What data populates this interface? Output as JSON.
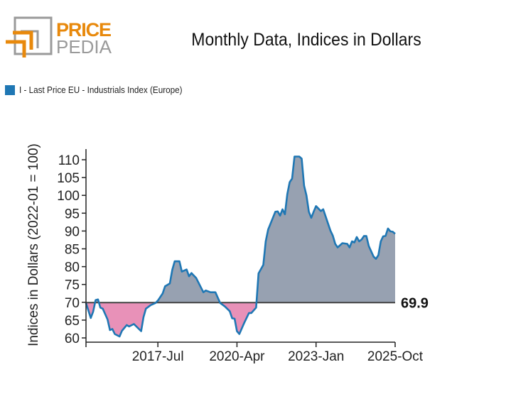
{
  "logo": {
    "line1": "PRICE",
    "line2": "PEDIA",
    "orange": "#e8890c",
    "gray": "#9a9a9a"
  },
  "title": "Monthly Data, Indices in Dollars",
  "legend": {
    "label": "I - Last Price EU - Industrials Index (Europe)",
    "color": "#1f77b4"
  },
  "chart_data": {
    "type": "area",
    "title": "Monthly Data, Indices in Dollars",
    "ylabel": "Indices in Dollars (2022-01 = 100)",
    "xlabel": "",
    "ylim": [
      59,
      113
    ],
    "yticks": [
      60,
      65,
      70,
      75,
      80,
      85,
      90,
      95,
      100,
      105,
      110
    ],
    "xlim": [
      "2015-01",
      "2025-10"
    ],
    "xticks": [
      {
        "date": "2015-01",
        "label": ""
      },
      {
        "date": "2017-07",
        "label": "2017-Jul"
      },
      {
        "date": "2020-04",
        "label": "2020-Apr"
      },
      {
        "date": "2023-01",
        "label": "2023-Jan"
      },
      {
        "date": "2025-10",
        "label": "2025-Oct"
      }
    ],
    "reference": {
      "value": 69.9,
      "label": "69.9"
    },
    "colors": {
      "line": "#1f77b4",
      "above": "#97a1b1",
      "below": "#e891b8",
      "reference": "#444444"
    },
    "grid": false,
    "series": [
      {
        "name": "I - Last Price EU - Industrials Index (Europe)",
        "points": [
          [
            "2015-01",
            69.8
          ],
          [
            "2015-03",
            65.6
          ],
          [
            "2015-04",
            67.4
          ],
          [
            "2015-05",
            70.6
          ],
          [
            "2015-06",
            70.8
          ],
          [
            "2015-07",
            68.5
          ],
          [
            "2015-08",
            68.2
          ],
          [
            "2015-10",
            65.2
          ],
          [
            "2015-11",
            62.2
          ],
          [
            "2015-12",
            62.5
          ],
          [
            "2016-01",
            61.1
          ],
          [
            "2016-03",
            60.4
          ],
          [
            "2016-04",
            62.0
          ],
          [
            "2016-06",
            63.6
          ],
          [
            "2016-07",
            63.2
          ],
          [
            "2016-09",
            63.9
          ],
          [
            "2016-12",
            61.9
          ],
          [
            "2017-01",
            65.8
          ],
          [
            "2017-02",
            68.2
          ],
          [
            "2017-04",
            69.2
          ],
          [
            "2017-06",
            69.8
          ],
          [
            "2017-07",
            70.5
          ],
          [
            "2017-09",
            72.5
          ],
          [
            "2017-10",
            74.5
          ],
          [
            "2017-12",
            75.3
          ],
          [
            "2018-01",
            79.1
          ],
          [
            "2018-02",
            81.5
          ],
          [
            "2018-04",
            81.5
          ],
          [
            "2018-05",
            78.6
          ],
          [
            "2018-07",
            79.2
          ],
          [
            "2018-08",
            77.3
          ],
          [
            "2018-09",
            78.2
          ],
          [
            "2018-11",
            76.8
          ],
          [
            "2019-01",
            74.1
          ],
          [
            "2019-02",
            72.8
          ],
          [
            "2019-03",
            73.3
          ],
          [
            "2019-05",
            72.8
          ],
          [
            "2019-07",
            72.8
          ],
          [
            "2019-09",
            69.8
          ],
          [
            "2019-11",
            68.8
          ],
          [
            "2020-01",
            67.5
          ],
          [
            "2020-02",
            65.5
          ],
          [
            "2020-03",
            65.4
          ],
          [
            "2020-04",
            61.9
          ],
          [
            "2020-05",
            61.1
          ],
          [
            "2020-07",
            64.2
          ],
          [
            "2020-09",
            67.0
          ],
          [
            "2020-10",
            67.0
          ],
          [
            "2020-12",
            68.5
          ],
          [
            "2021-01",
            78.1
          ],
          [
            "2021-03",
            80.5
          ],
          [
            "2021-04",
            87.1
          ],
          [
            "2021-05",
            90.4
          ],
          [
            "2021-08",
            95.4
          ],
          [
            "2021-09",
            95.5
          ],
          [
            "2021-10",
            94.3
          ],
          [
            "2021-11",
            96.1
          ],
          [
            "2021-12",
            94.7
          ],
          [
            "2022-01",
            100.4
          ],
          [
            "2022-02",
            103.7
          ],
          [
            "2022-03",
            104.7
          ],
          [
            "2022-04",
            110.9
          ],
          [
            "2022-06",
            110.9
          ],
          [
            "2022-07",
            110.3
          ],
          [
            "2022-08",
            102.7
          ],
          [
            "2022-09",
            100.0
          ],
          [
            "2022-10",
            95.4
          ],
          [
            "2022-11",
            93.7
          ],
          [
            "2022-12",
            95.4
          ],
          [
            "2023-01",
            97.0
          ],
          [
            "2023-03",
            95.6
          ],
          [
            "2023-04",
            96.1
          ],
          [
            "2023-06",
            92.1
          ],
          [
            "2023-07",
            90.1
          ],
          [
            "2023-08",
            88.7
          ],
          [
            "2023-09",
            86.4
          ],
          [
            "2023-10",
            85.4
          ],
          [
            "2023-12",
            86.6
          ],
          [
            "2024-02",
            86.4
          ],
          [
            "2024-03",
            85.4
          ],
          [
            "2024-04",
            87.1
          ],
          [
            "2024-05",
            86.8
          ],
          [
            "2024-06",
            88.3
          ],
          [
            "2024-07",
            87.1
          ],
          [
            "2024-08",
            87.6
          ],
          [
            "2024-09",
            88.6
          ],
          [
            "2024-10",
            88.6
          ],
          [
            "2024-11",
            85.8
          ],
          [
            "2025-01",
            82.8
          ],
          [
            "2025-02",
            82.2
          ],
          [
            "2025-03",
            83.2
          ],
          [
            "2025-04",
            87.1
          ],
          [
            "2025-05",
            88.5
          ],
          [
            "2025-06",
            88.6
          ],
          [
            "2025-07",
            90.7
          ],
          [
            "2025-08",
            89.9
          ],
          [
            "2025-09",
            89.8
          ],
          [
            "2025-10",
            89.2
          ]
        ]
      }
    ]
  }
}
